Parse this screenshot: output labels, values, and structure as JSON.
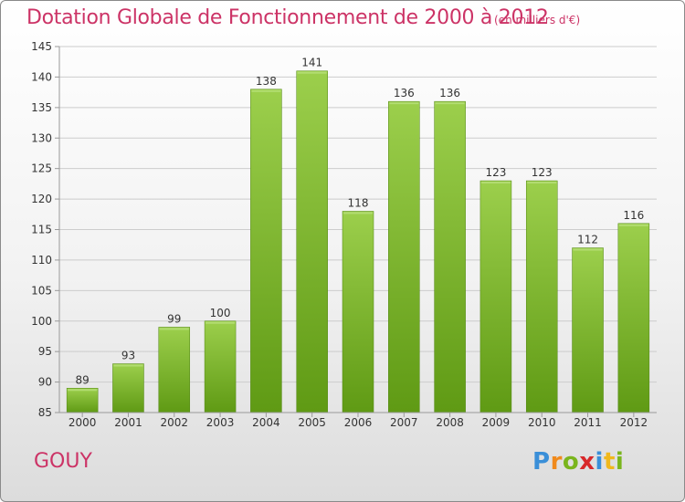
{
  "title": "Dotation Globale de Fonctionnement de 2000 à 2012",
  "unit": "(en milliers d'€)",
  "commune": "GOUY",
  "logo": {
    "text": "Proxiti",
    "letters": [
      {
        "char": "P",
        "color": "#3a8fd8"
      },
      {
        "char": "r",
        "color": "#f08a1c"
      },
      {
        "char": "o",
        "color": "#7ab51d"
      },
      {
        "char": "x",
        "color": "#d8282a"
      },
      {
        "char": "i",
        "color": "#3a8fd8"
      },
      {
        "char": "t",
        "color": "#f0b81c"
      },
      {
        "char": "i",
        "color": "#7ab51d"
      }
    ]
  },
  "colors": {
    "accent": "#cc3366",
    "bar_top": "#9ccf4c",
    "bar_bottom": "#5f9a14",
    "grid": "#cccccc",
    "axis_text": "#333333"
  },
  "chart_data": {
    "type": "bar",
    "categories": [
      "2000",
      "2001",
      "2002",
      "2003",
      "2004",
      "2005",
      "2006",
      "2007",
      "2008",
      "2009",
      "2010",
      "2011",
      "2012"
    ],
    "values": [
      89,
      93,
      99,
      100,
      138,
      141,
      118,
      136,
      136,
      123,
      123,
      112,
      116
    ],
    "ylim": [
      85,
      145
    ],
    "yticks": [
      85,
      90,
      95,
      100,
      105,
      110,
      115,
      120,
      125,
      130,
      135,
      140,
      145
    ],
    "grid": true,
    "xlabel": "",
    "ylabel": ""
  }
}
